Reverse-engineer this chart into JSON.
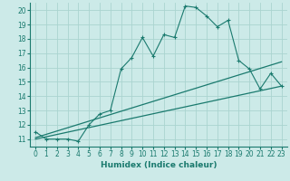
{
  "xlabel": "Humidex (Indice chaleur)",
  "xlim": [
    -0.5,
    23.5
  ],
  "ylim": [
    10.5,
    20.5
  ],
  "yticks": [
    11,
    12,
    13,
    14,
    15,
    16,
    17,
    18,
    19,
    20
  ],
  "xticks": [
    0,
    1,
    2,
    3,
    4,
    5,
    6,
    7,
    8,
    9,
    10,
    11,
    12,
    13,
    14,
    15,
    16,
    17,
    18,
    19,
    20,
    21,
    22,
    23
  ],
  "bg_color": "#cceae8",
  "grid_color": "#aad4d0",
  "line_color": "#1a7a6e",
  "line1_x": [
    0,
    1,
    2,
    3,
    4,
    5,
    6,
    7,
    8,
    9,
    10,
    11,
    12,
    13,
    14,
    15,
    16,
    17,
    18,
    19,
    20,
    21,
    22,
    23
  ],
  "line1_y": [
    11.5,
    11.0,
    11.0,
    11.0,
    10.85,
    12.0,
    12.75,
    13.0,
    15.9,
    16.7,
    18.1,
    16.8,
    18.3,
    18.1,
    20.3,
    20.2,
    19.6,
    18.85,
    19.3,
    16.5,
    15.9,
    14.5,
    15.6,
    14.7
  ],
  "line2_x": [
    0,
    23
  ],
  "line2_y": [
    11.1,
    16.4
  ],
  "line3_x": [
    0,
    23
  ],
  "line3_y": [
    11.0,
    14.7
  ],
  "xlabel_fontsize": 6.5,
  "tick_fontsize": 5.5
}
